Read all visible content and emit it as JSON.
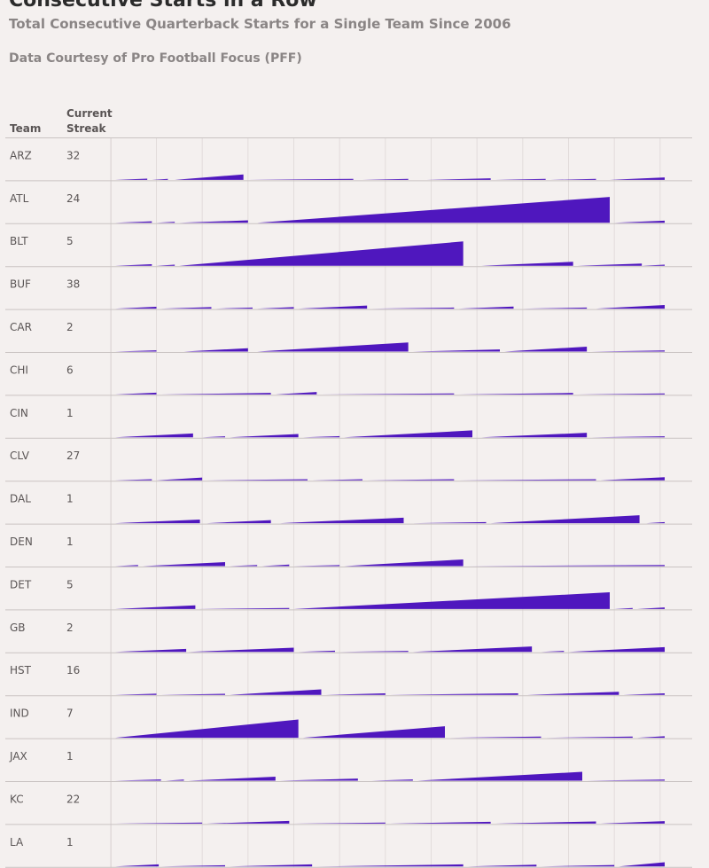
{
  "title": "Consecutive Starts in a Row",
  "subtitle": "Total Consecutive Quarterback Starts for a Single Team Since 2006",
  "source": "Data Courtesy of Pro Football Focus (PFF)",
  "headers": {
    "team": "Team",
    "streak_line1": "Current",
    "streak_line2": "Streak"
  },
  "colors": {
    "bar": "#4f17be",
    "background": "#f4f0ef",
    "grid": "#e2dcdb",
    "row_line": "#c9c3c2"
  },
  "chart_data": {
    "type": "area",
    "description_units": "consecutive starts",
    "xlabel": "",
    "ylabel": "",
    "xlim": [
      0,
      12
    ],
    "ymax": 105,
    "grid": true,
    "rows": [
      {
        "team": "ARZ",
        "streak": 32,
        "runs": [
          [
            0.0,
            0.7,
            4
          ],
          [
            0.8,
            1.15,
            2
          ],
          [
            1.3,
            2.8,
            18
          ],
          [
            2.9,
            5.2,
            1
          ],
          [
            5.4,
            6.4,
            1
          ],
          [
            6.8,
            8.2,
            5
          ],
          [
            8.3,
            9.4,
            2
          ],
          [
            9.5,
            10.5,
            3
          ],
          [
            10.8,
            12.0,
            8
          ]
        ]
      },
      {
        "team": "ATL",
        "streak": 24,
        "runs": [
          [
            0.0,
            0.8,
            5
          ],
          [
            0.9,
            1.3,
            1
          ],
          [
            1.4,
            2.9,
            8
          ],
          [
            3.1,
            10.8,
            85
          ],
          [
            10.9,
            12.0,
            7
          ]
        ]
      },
      {
        "team": "BLT",
        "streak": 5,
        "runs": [
          [
            0.0,
            0.8,
            5
          ],
          [
            0.9,
            1.3,
            1
          ],
          [
            1.4,
            7.6,
            80
          ],
          [
            8.0,
            10.0,
            13
          ],
          [
            10.1,
            11.5,
            7
          ],
          [
            11.5,
            12.0,
            1
          ]
        ]
      },
      {
        "team": "BUF",
        "streak": 38,
        "runs": [
          [
            0.0,
            0.9,
            6
          ],
          [
            1.0,
            2.1,
            5
          ],
          [
            2.2,
            3.0,
            1
          ],
          [
            3.1,
            3.9,
            5
          ],
          [
            4.0,
            5.5,
            10
          ],
          [
            5.6,
            7.4,
            1
          ],
          [
            7.5,
            8.7,
            7
          ],
          [
            8.9,
            10.3,
            2
          ],
          [
            10.5,
            12.0,
            12
          ]
        ]
      },
      {
        "team": "CAR",
        "streak": 2,
        "runs": [
          [
            0.0,
            0.9,
            4
          ],
          [
            1.5,
            2.9,
            11
          ],
          [
            3.1,
            6.4,
            30
          ],
          [
            6.5,
            8.4,
            7
          ],
          [
            8.5,
            10.3,
            16
          ],
          [
            10.4,
            12.0,
            3
          ]
        ]
      },
      {
        "team": "CHI",
        "streak": 6,
        "runs": [
          [
            0.0,
            0.9,
            6
          ],
          [
            1.0,
            3.4,
            5
          ],
          [
            3.5,
            4.4,
            8
          ],
          [
            4.5,
            7.4,
            3
          ],
          [
            7.5,
            10.0,
            5
          ],
          [
            10.1,
            12.0,
            3
          ]
        ]
      },
      {
        "team": "CIN",
        "streak": 1,
        "runs": [
          [
            0.0,
            1.7,
            13
          ],
          [
            1.9,
            2.4,
            1
          ],
          [
            2.5,
            4.0,
            11
          ],
          [
            4.1,
            4.9,
            4
          ],
          [
            5.0,
            7.8,
            23
          ],
          [
            8.0,
            10.3,
            15
          ],
          [
            10.4,
            12.0,
            3
          ]
        ]
      },
      {
        "team": "CLV",
        "streak": 27,
        "runs": [
          [
            0.0,
            0.8,
            2
          ],
          [
            0.9,
            1.9,
            9
          ],
          [
            2.0,
            4.2,
            2
          ],
          [
            4.3,
            5.4,
            3
          ],
          [
            5.5,
            7.4,
            3
          ],
          [
            7.5,
            10.5,
            3
          ],
          [
            10.6,
            12.0,
            10
          ]
        ]
      },
      {
        "team": "DAL",
        "streak": 1,
        "runs": [
          [
            0.0,
            1.85,
            12
          ],
          [
            2.0,
            3.4,
            10
          ],
          [
            3.6,
            6.3,
            18
          ],
          [
            6.5,
            8.1,
            2
          ],
          [
            8.2,
            11.45,
            26
          ],
          [
            11.6,
            12.0,
            1
          ]
        ]
      },
      {
        "team": "DEN",
        "streak": 1,
        "runs": [
          [
            0.0,
            0.5,
            3
          ],
          [
            0.6,
            2.4,
            13
          ],
          [
            2.5,
            3.1,
            3
          ],
          [
            3.2,
            3.8,
            5
          ],
          [
            3.9,
            4.9,
            3
          ],
          [
            5.0,
            7.6,
            22
          ],
          [
            7.7,
            12.0,
            2
          ]
        ]
      },
      {
        "team": "DET",
        "streak": 5,
        "runs": [
          [
            0.0,
            1.75,
            12
          ],
          [
            1.8,
            3.8,
            2
          ],
          [
            3.9,
            10.8,
            55
          ],
          [
            10.9,
            11.3,
            1
          ],
          [
            11.4,
            12.0,
            5
          ]
        ]
      },
      {
        "team": "GB",
        "streak": 2,
        "runs": [
          [
            0.0,
            1.55,
            10
          ],
          [
            1.6,
            3.9,
            14
          ],
          [
            4.0,
            4.8,
            4
          ],
          [
            4.9,
            6.4,
            3
          ],
          [
            6.5,
            9.1,
            18
          ],
          [
            9.3,
            9.8,
            1
          ],
          [
            9.9,
            12.0,
            16
          ]
        ]
      },
      {
        "team": "HST",
        "streak": 16,
        "runs": [
          [
            0.0,
            0.9,
            4
          ],
          [
            1.0,
            2.4,
            3
          ],
          [
            2.5,
            4.5,
            18
          ],
          [
            4.6,
            5.9,
            5
          ],
          [
            6.0,
            8.8,
            5
          ],
          [
            9.0,
            11.0,
            10
          ],
          [
            11.1,
            12.0,
            5
          ]
        ]
      },
      {
        "team": "IND",
        "streak": 7,
        "runs": [
          [
            0.0,
            4.0,
            60
          ],
          [
            4.1,
            7.2,
            38
          ],
          [
            7.3,
            9.3,
            4
          ],
          [
            9.4,
            11.3,
            4
          ],
          [
            11.4,
            12.0,
            5
          ]
        ]
      },
      {
        "team": "JAX",
        "streak": 1,
        "runs": [
          [
            0.0,
            1.0,
            4
          ],
          [
            1.1,
            1.5,
            1
          ],
          [
            1.6,
            3.5,
            13
          ],
          [
            3.6,
            5.3,
            7
          ],
          [
            5.6,
            6.5,
            4
          ],
          [
            6.6,
            10.2,
            29
          ],
          [
            10.3,
            12.0,
            3
          ]
        ]
      },
      {
        "team": "KC",
        "streak": 22,
        "runs": [
          [
            0.0,
            1.9,
            3
          ],
          [
            2.0,
            3.8,
            9
          ],
          [
            3.9,
            5.9,
            3
          ],
          [
            6.0,
            8.2,
            6
          ],
          [
            8.3,
            10.5,
            7
          ],
          [
            10.6,
            12.0,
            8
          ]
        ]
      },
      {
        "team": "LA",
        "streak": 1,
        "runs": [
          [
            0.0,
            0.95,
            7
          ],
          [
            1.0,
            2.4,
            4
          ],
          [
            2.5,
            4.3,
            7
          ],
          [
            4.4,
            7.6,
            7
          ],
          [
            7.7,
            9.2,
            6
          ],
          [
            9.3,
            10.9,
            5
          ],
          [
            11.0,
            12.0,
            14
          ]
        ]
      }
    ]
  }
}
